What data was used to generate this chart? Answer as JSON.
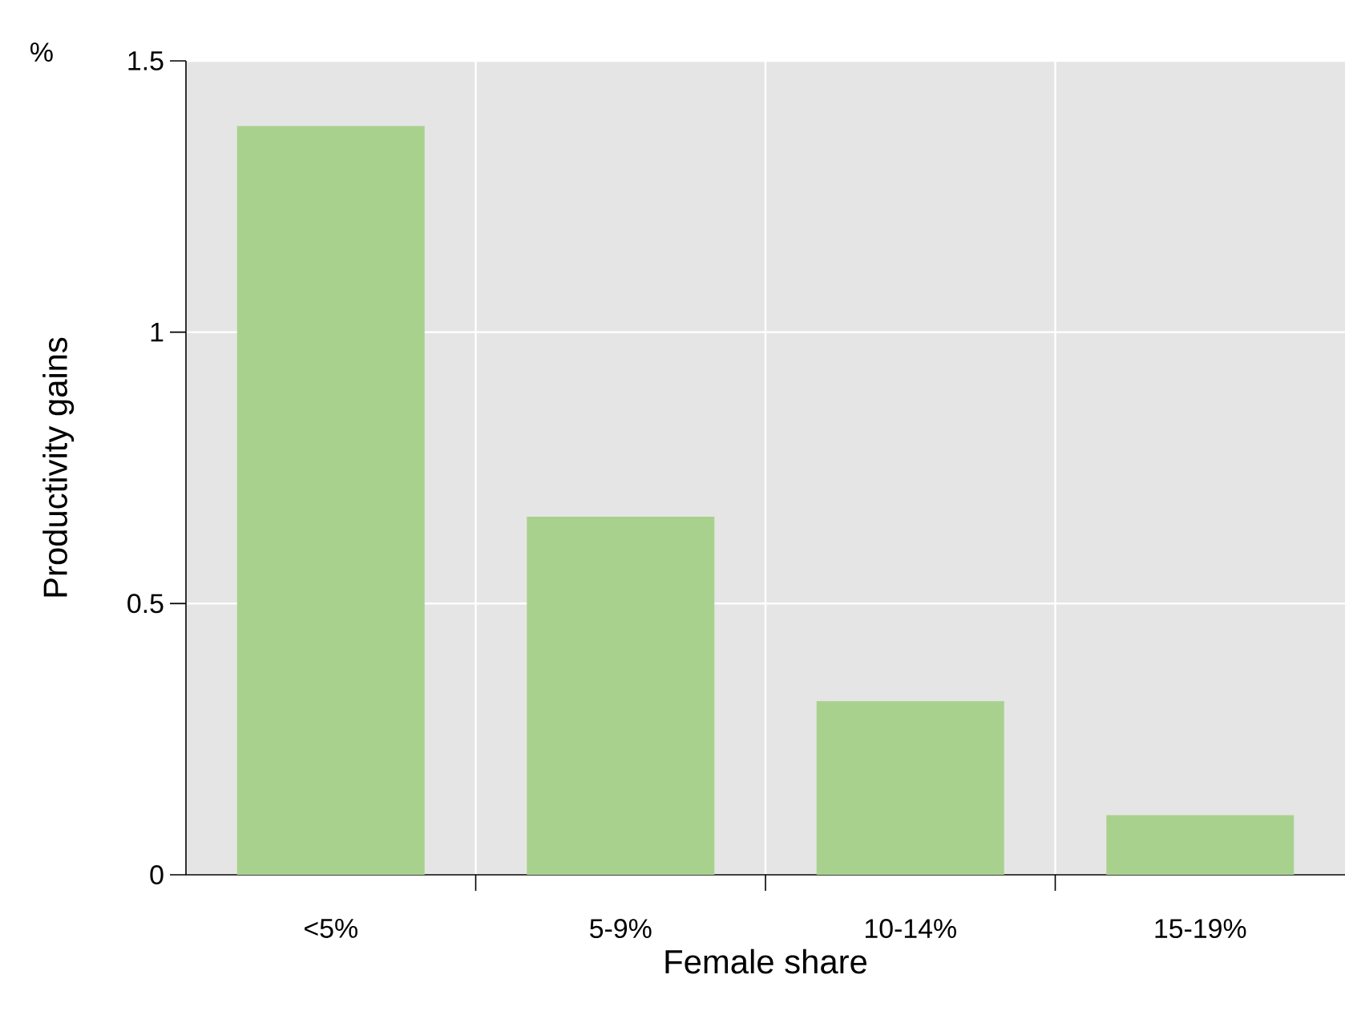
{
  "chart_data": {
    "type": "bar",
    "xlabel": "Female share",
    "ylabel": "Productivity gains",
    "annotations": [
      "%"
    ],
    "categories": [
      "<5%",
      "5-9%",
      "10-14%",
      "15-19%"
    ],
    "values": [
      1.38,
      0.66,
      0.32,
      0.11
    ],
    "color": "#a9d18e",
    "ylim": [
      0,
      1.5
    ],
    "yticks": [
      0,
      0.5,
      1,
      1.5
    ],
    "grid": true
  }
}
